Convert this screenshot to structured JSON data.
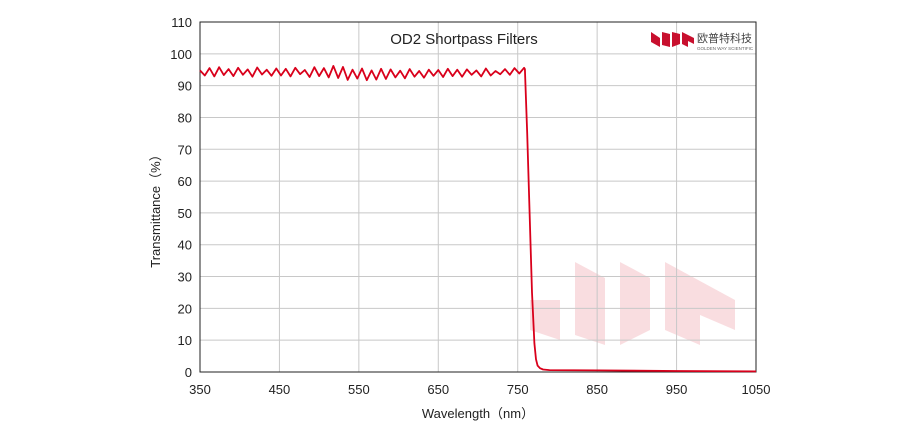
{
  "chart_data": {
    "type": "line",
    "title": "OD2  Shortpass Filters",
    "xlabel": "Wavelength（nm）",
    "ylabel": "Transmittance（%）",
    "xlim": [
      350,
      1050
    ],
    "ylim": [
      0,
      110
    ],
    "xticks": [
      350,
      450,
      550,
      650,
      750,
      850,
      950,
      1050
    ],
    "yticks": [
      0,
      10,
      20,
      30,
      40,
      50,
      60,
      70,
      80,
      90,
      100,
      110
    ],
    "grid": true,
    "legend": "none",
    "series": [
      {
        "color": "#d9001b",
        "x": [
          350,
          356,
          362,
          368,
          374,
          380,
          386,
          392,
          398,
          404,
          410,
          416,
          422,
          428,
          434,
          440,
          446,
          452,
          458,
          464,
          470,
          476,
          482,
          488,
          494,
          500,
          506,
          512,
          518,
          524,
          530,
          536,
          542,
          548,
          554,
          560,
          566,
          572,
          578,
          584,
          590,
          596,
          602,
          608,
          614,
          620,
          626,
          632,
          638,
          644,
          650,
          656,
          662,
          668,
          674,
          680,
          686,
          692,
          698,
          704,
          710,
          716,
          722,
          728,
          734,
          740,
          746,
          752,
          758,
          759,
          762,
          765,
          768,
          771,
          773,
          775,
          778,
          782,
          790,
          850,
          950,
          1050
        ],
        "y": [
          94.8,
          93.2,
          95.5,
          92.9,
          95.8,
          93.3,
          95.2,
          93.0,
          95.6,
          93.4,
          95.1,
          92.8,
          95.7,
          93.5,
          95.0,
          93.1,
          95.4,
          93.2,
          95.3,
          92.9,
          95.6,
          93.6,
          94.9,
          92.7,
          95.8,
          93.0,
          95.5,
          92.6,
          96.2,
          92.4,
          95.9,
          91.8,
          95.0,
          92.2,
          95.4,
          91.7,
          94.8,
          91.9,
          95.3,
          92.1,
          95.1,
          92.6,
          94.7,
          92.3,
          95.2,
          92.8,
          94.6,
          92.5,
          95.0,
          93.1,
          94.9,
          92.7,
          95.3,
          93.0,
          95.0,
          92.8,
          95.1,
          93.4,
          94.8,
          92.9,
          95.4,
          93.2,
          94.6,
          93.6,
          95.2,
          93.4,
          95.5,
          93.8,
          95.6,
          95.2,
          75.0,
          50.0,
          25.0,
          9.0,
          4.0,
          2.0,
          1.2,
          0.8,
          0.6,
          0.5,
          0.3,
          0.2
        ]
      }
    ]
  },
  "logo": {
    "name_cn": "欧普特科技",
    "name_en": "GOLDEN WAY SCIENTIFIC",
    "icon": "gw-logo-icon",
    "color": "#c8102e"
  }
}
